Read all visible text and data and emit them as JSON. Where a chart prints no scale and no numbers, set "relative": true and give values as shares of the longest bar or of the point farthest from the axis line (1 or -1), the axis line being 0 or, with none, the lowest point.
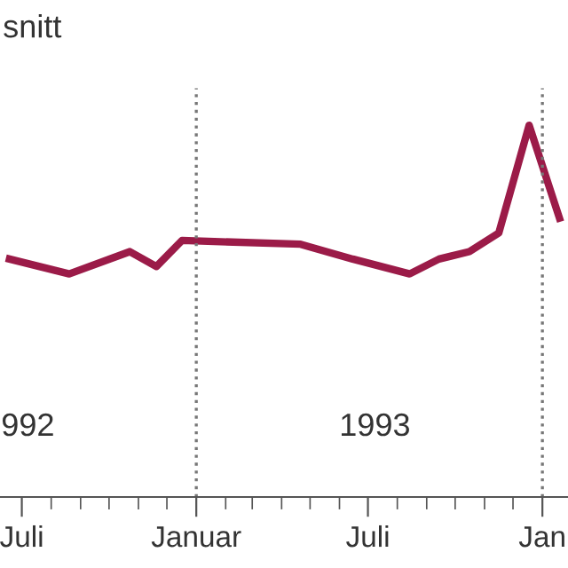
{
  "chart_data": {
    "type": "line",
    "title": "snitt",
    "relative": true,
    "x": [
      "1992-06-18",
      "1992-08-20",
      "1992-10-23",
      "1992-11-20",
      "1992-12-17",
      "1993-04-21",
      "1993-06-15",
      "1993-08-14",
      "1993-09-14",
      "1993-10-16",
      "1993-11-16",
      "1993-12-18",
      "1994-01-19"
    ],
    "series": [
      {
        "color": "#9b1b48",
        "values": [
          0.64,
          0.6,
          0.66,
          0.62,
          0.69,
          0.68,
          0.64,
          0.6,
          0.64,
          0.66,
          0.71,
          1,
          0.75
        ]
      }
    ],
    "xlim": [
      "1992-06-08",
      "1994-01-28"
    ],
    "xticks": [
      {
        "value": "1992-07-01",
        "label": "Juli"
      },
      {
        "value": "1993-01-01",
        "label": "Januar"
      },
      {
        "value": "1993-07-01",
        "label": "Juli"
      },
      {
        "value": "1994-01-01",
        "label": "Jan"
      }
    ],
    "ref_lines": [
      {
        "axis": "x",
        "value": "1993-01-01",
        "color": "#777777",
        "line_style": "dotted"
      },
      {
        "axis": "x",
        "value": "1994-01-01",
        "color": "#777777",
        "line_style": "dotted"
      }
    ],
    "annotations": [
      "992",
      "1993"
    ],
    "tick_labels": "x",
    "grid": false,
    "legend": false,
    "marker": "none",
    "line_style": "solid"
  }
}
